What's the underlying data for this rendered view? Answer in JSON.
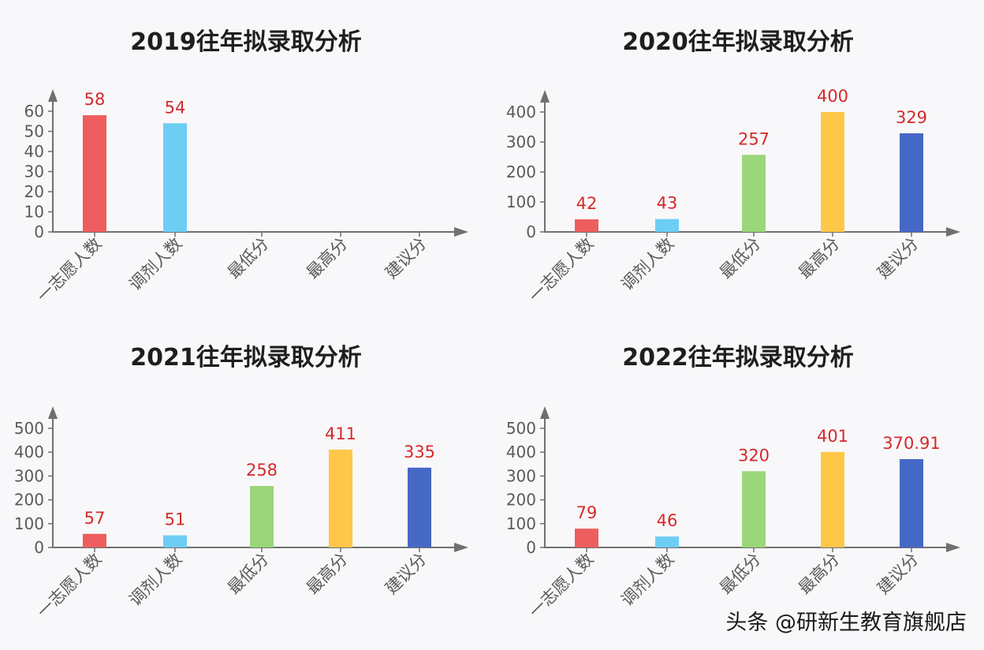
{
  "categories": [
    "一志愿人数",
    "调剂人数",
    "最低分",
    "最高分",
    "建议分"
  ],
  "colors": [
    "#ee5e5e",
    "#6dcdf5",
    "#9bd67a",
    "#ffc748",
    "#4668c5"
  ],
  "watermark": "头条 @研新生教育旗舰店",
  "chart_data": [
    {
      "type": "bar",
      "title": "2019往年拟录取分析",
      "categories": [
        "一志愿人数",
        "调剂人数",
        "最低分",
        "最高分",
        "建议分"
      ],
      "values": [
        58,
        54,
        null,
        null,
        null
      ],
      "labels": [
        "58",
        "54",
        "",
        "",
        ""
      ],
      "yticks": [
        0,
        10,
        20,
        30,
        40,
        50,
        60
      ],
      "ylim": [
        0,
        60
      ],
      "xlabel": "",
      "ylabel": ""
    },
    {
      "type": "bar",
      "title": "2020往年拟录取分析",
      "categories": [
        "一志愿人数",
        "调剂人数",
        "最低分",
        "最高分",
        "建议分"
      ],
      "values": [
        42,
        43,
        257,
        400,
        329
      ],
      "labels": [
        "42",
        "43",
        "257",
        "400",
        "329"
      ],
      "yticks": [
        0,
        100,
        200,
        300,
        400
      ],
      "ylim": [
        0,
        400
      ],
      "xlabel": "",
      "ylabel": ""
    },
    {
      "type": "bar",
      "title": "2021往年拟录取分析",
      "categories": [
        "一志愿人数",
        "调剂人数",
        "最低分",
        "最高分",
        "建议分"
      ],
      "values": [
        57,
        51,
        258,
        411,
        335
      ],
      "labels": [
        "57",
        "51",
        "258",
        "411",
        "335"
      ],
      "yticks": [
        0,
        100,
        200,
        300,
        400,
        500
      ],
      "ylim": [
        0,
        500
      ],
      "xlabel": "",
      "ylabel": ""
    },
    {
      "type": "bar",
      "title": "2022往年拟录取分析",
      "categories": [
        "一志愿人数",
        "调剂人数",
        "最低分",
        "最高分",
        "建议分"
      ],
      "values": [
        79,
        46,
        320,
        401,
        370.91
      ],
      "labels": [
        "79",
        "46",
        "320",
        "401",
        "370.91"
      ],
      "yticks": [
        0,
        100,
        200,
        300,
        400,
        500
      ],
      "ylim": [
        0,
        500
      ],
      "xlabel": "",
      "ylabel": ""
    }
  ]
}
